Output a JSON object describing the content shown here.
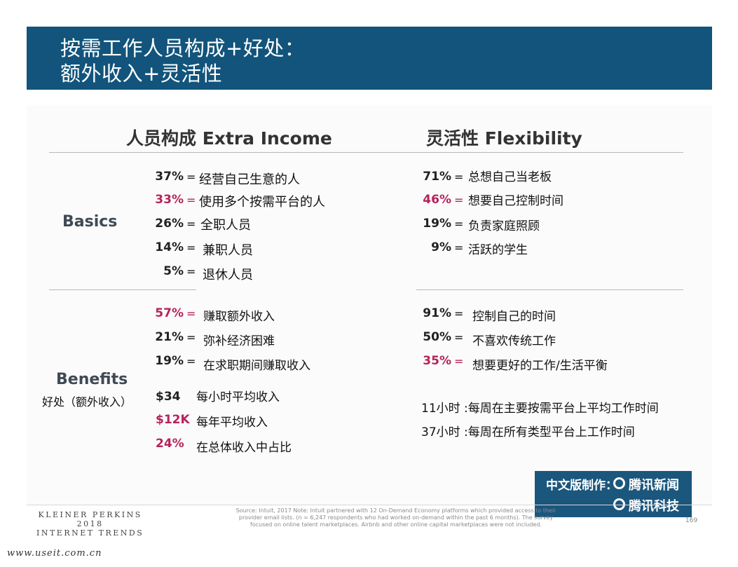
{
  "header": {
    "title_line1": "按需工作人员构成+好处：",
    "title_line2": "额外收入+灵活性"
  },
  "columns": {
    "left_title": "人员构成 Extra Income",
    "right_title": "灵活性  Flexibility"
  },
  "sections": {
    "basics_label": "Basics",
    "benefits_label": "Benefits",
    "benefits_sublabel": "好处（额外收入）"
  },
  "basics_left": [
    {
      "pct": "37%",
      "eq": "=",
      "desc": "经营自己生意的人"
    },
    {
      "pct": "33%",
      "eq": "=",
      "desc": "使用多个按需平台的人"
    },
    {
      "pct": "26%",
      "eq": "=",
      "desc": "全职人员"
    },
    {
      "pct": "14%",
      "eq": "=",
      "desc": "兼职人员"
    },
    {
      "pct": "5%",
      "eq": "=",
      "desc": "退休人员"
    }
  ],
  "basics_right": [
    {
      "pct": "71%",
      "eq": "=",
      "desc": "总想自己当老板"
    },
    {
      "pct": "46%",
      "eq": "=",
      "desc": "想要自己控制时间"
    },
    {
      "pct": "19%",
      "eq": "=",
      "desc": "负责家庭照顾"
    },
    {
      "pct": "9%",
      "eq": "=",
      "desc": "活跃的学生"
    }
  ],
  "benefits_left": [
    {
      "pct": "57%",
      "eq": "=",
      "desc": "赚取额外收入"
    },
    {
      "pct": "21%",
      "eq": "=",
      "desc": "弥补经济困难"
    },
    {
      "pct": "19%",
      "eq": "=",
      "desc": "在求职期间赚取收入"
    }
  ],
  "benefits_income": [
    {
      "value": "$34",
      "desc": "每小时平均收入"
    },
    {
      "value": "$12K",
      "desc": "每年平均收入"
    },
    {
      "value": "24%",
      "desc": "在总体收入中占比"
    }
  ],
  "benefits_right": [
    {
      "pct": "91%",
      "eq": "=",
      "desc": "控制自己的时间"
    },
    {
      "pct": "50%",
      "eq": "=",
      "desc": "不喜欢传统工作"
    },
    {
      "pct": "35%",
      "eq": "=",
      "desc": "想要更好的工作/生活平衡"
    }
  ],
  "hours": [
    "11小时 :每周在主要按需平台上平均工作时间",
    "37小时 :每周在所有类型平台上工作时间"
  ],
  "badge": {
    "line1": "中文版制作：",
    "brand1": "腾讯新闻",
    "brand2": "腾讯科技"
  },
  "footer": {
    "org_line1": "KLEINER PERKINS",
    "org_line2": "2018",
    "org_line3": "INTERNET TRENDS",
    "source": "Source: Intuit, 2017  Note: Intuit partnered with 12 On-Demand Economy platforms which provided access to their provider email lists. (n = 6,247 respondents who had worked on-demand within the past 6 months). The survey focused on online talent marketplaces. Airbnb and other online capital marketplaces were not included.",
    "page": "169",
    "site": "www.useit.com.cn"
  },
  "colors": {
    "header_bg": "#12547b",
    "highlight": "#b5235a",
    "badge_bg": "#1b567d"
  }
}
